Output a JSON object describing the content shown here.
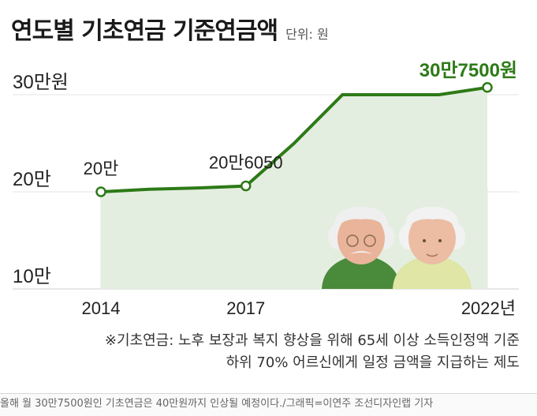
{
  "header": {
    "title": "연도별 기초연금 기준연금액",
    "unit": "단위: 원"
  },
  "chart_data": {
    "type": "area",
    "title": "연도별 기초연금 기준연금액",
    "unit_label": "단위: 원",
    "x": [
      2014,
      2015,
      2016,
      2017,
      2018,
      2019,
      2020,
      2021,
      2022
    ],
    "x_tick_values": [
      2014,
      2017,
      2022
    ],
    "x_tick_labels": [
      "2014",
      "2017",
      "2022년"
    ],
    "y_tick_values": [
      100000,
      200000,
      300000
    ],
    "y_tick_labels": [
      "10만",
      "20만",
      "30만원"
    ],
    "ylim": [
      100000,
      300000
    ],
    "grid": true,
    "series": [
      {
        "values": [
          200000,
          202600,
          204010,
          206050,
          250000,
          300000,
          300000,
          300000,
          307500
        ],
        "color": "#2d7a17"
      }
    ],
    "point_labels": [
      {
        "x": 2014,
        "y": 200000,
        "label": "20만"
      },
      {
        "x": 2017,
        "y": 206050,
        "label": "20만6050"
      },
      {
        "x": 2022,
        "y": 307500,
        "label": "30만7500원"
      }
    ],
    "colors": {
      "line": "#2d7a17",
      "area": "#e4eee0",
      "grid": "#e6e6e6",
      "highlight_label": "#2d7a17"
    }
  },
  "footnote": {
    "line1": "※기초연금: 노후 보장과 복지 향상을 위해 65세 이상 소득인정액 기준",
    "line2": "하위 70% 어르신에게 일정 금액을 지급하는 제도"
  },
  "caption": "올해 월 30만7500원인 기초연금은 40만원까지 인상될 예정이다./그래픽=이연주 조선디자인랩 기자"
}
